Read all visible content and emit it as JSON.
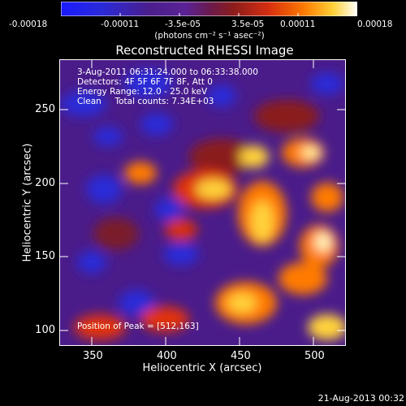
{
  "colorbar": {
    "tick_labels": [
      "-0.00018",
      "-0.00011",
      "-3.5e-05",
      "3.5e-05",
      "0.00011",
      "0.00018"
    ],
    "unit_label": "(photons cm⁻² s⁻¹ asec⁻²)",
    "colors": [
      "#1a1aff",
      "#4b1e8c",
      "#6a2aa8",
      "#8a1c1c",
      "#d62e10",
      "#ff7a00",
      "#ffd23a",
      "#ffffff"
    ]
  },
  "title": "Reconstructed RHESSI Image",
  "overlay": {
    "time_range": "3-Aug-2011 06:31:24.000 to 06:33:38.000",
    "detectors": "Detectors: 4F 5F 6F 7F 8F, Att 0",
    "energy_range": "Energy Range: 12.0 - 25.0 keV",
    "method_counts": "Clean     Total counts: 7.34E+03",
    "peak": "Position of Peak = [512,163]"
  },
  "axes": {
    "xlabel": "Heliocentric X (arcsec)",
    "ylabel": "Heliocentric Y (arcsec)",
    "x_ticks": [
      "350",
      "400",
      "450",
      "500"
    ],
    "y_ticks": [
      "100",
      "150",
      "200",
      "250"
    ],
    "xlim": [
      328,
      522
    ],
    "ylim": [
      90,
      284
    ]
  },
  "footer_timestamp": "21-Aug-2013 00:32"
}
